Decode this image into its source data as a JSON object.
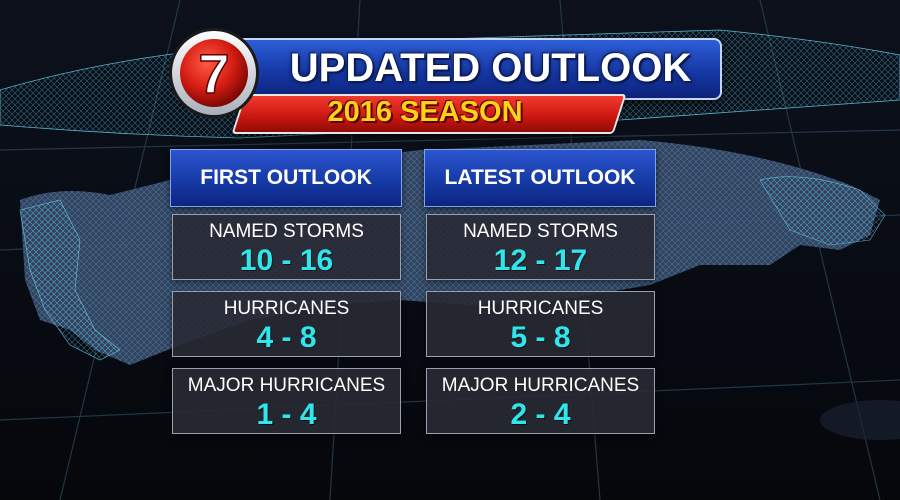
{
  "header": {
    "logo_text": "7",
    "title": "UPDATED OUTLOOK",
    "subtitle": "2016 SEASON"
  },
  "columns": [
    {
      "heading": "FIRST OUTLOOK",
      "stats": [
        {
          "label": "NAMED STORMS",
          "value": "10 - 16"
        },
        {
          "label": "HURRICANES",
          "value": "4 - 8"
        },
        {
          "label": "MAJOR HURRICANES",
          "value": "1 - 4"
        }
      ]
    },
    {
      "heading": "LATEST OUTLOOK",
      "stats": [
        {
          "label": "NAMED STORMS",
          "value": "12 - 17"
        },
        {
          "label": "HURRICANES",
          "value": "5 - 8"
        },
        {
          "label": "MAJOR HURRICANES",
          "value": "2 - 4"
        }
      ]
    }
  ],
  "colors": {
    "banner_blue": "#1638a6",
    "banner_red": "#c81710",
    "subtitle_yellow": "#ffd21a",
    "value_cyan": "#2fe6ea",
    "mesh_cyan": "#3fb6d8"
  }
}
